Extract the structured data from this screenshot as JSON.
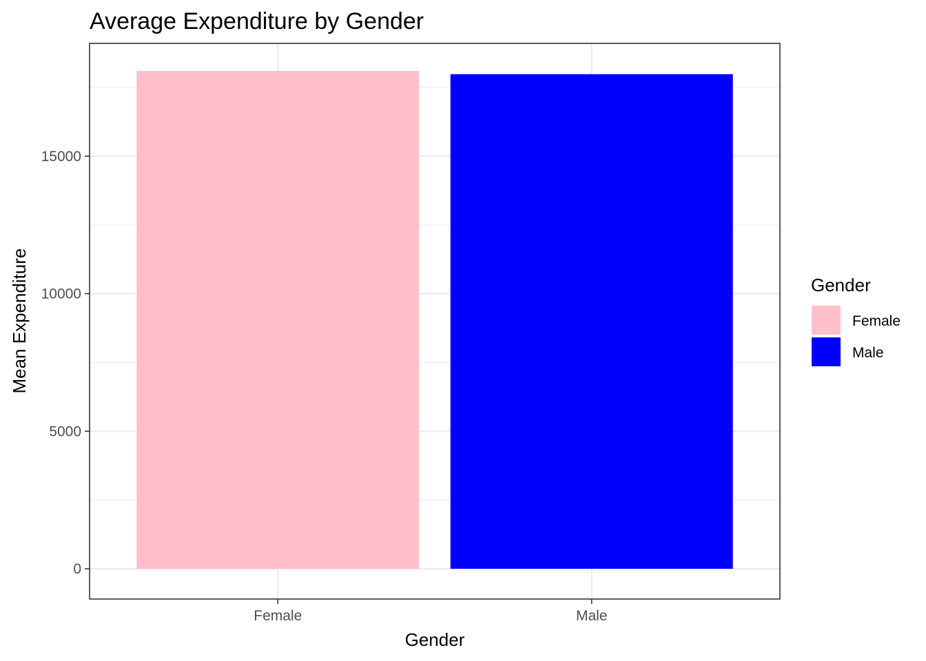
{
  "chart_data": {
    "type": "bar",
    "title": "Average Expenditure by Gender",
    "xlabel": "Gender",
    "ylabel": "Mean Expenditure",
    "categories": [
      "Female",
      "Male"
    ],
    "values": [
      18100,
      17980
    ],
    "colors": [
      "#ffc0cb",
      "#0000ff"
    ],
    "ylim": [
      -1100,
      19100
    ],
    "yticks": [
      0,
      5000,
      10000,
      15000
    ],
    "minor_yticks": [
      2500,
      7500,
      12500,
      17500
    ],
    "grid": true,
    "legend": {
      "title": "Gender",
      "position": "right",
      "entries": [
        {
          "label": "Female",
          "color": "#ffc0cb"
        },
        {
          "label": "Male",
          "color": "#0000ff"
        }
      ]
    }
  }
}
